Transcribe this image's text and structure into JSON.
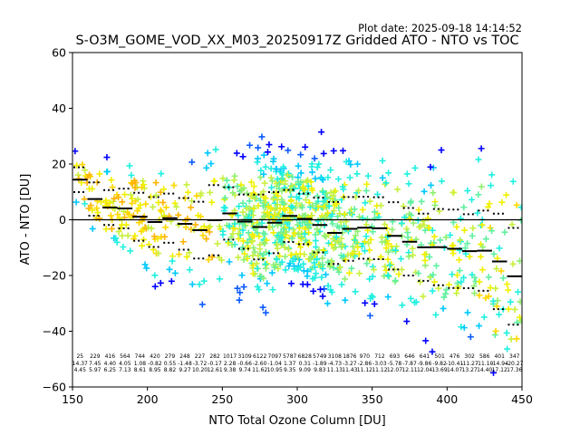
{
  "chart_data": {
    "type": "scatter",
    "plot_date": "Plot date: 2025-09-18 14:14:52",
    "title": "S-O3M_GOME_VOD_XX_M03_20250917Z Gridded ATO - NTO vs TOC",
    "xlabel": "NTO Total Ozone Column [DU]",
    "ylabel": "ATO - NTO [DU]",
    "xlim": [
      150,
      450
    ],
    "ylim": [
      -60,
      60
    ],
    "xticks": [
      "150",
      "200",
      "250",
      "300",
      "350",
      "400",
      "450"
    ],
    "yticks": [
      "60",
      "40",
      "20",
      "0",
      "−20",
      "−40",
      "−60"
    ],
    "zero_line": 0,
    "bin_width": 10,
    "bins": [
      {
        "x": 150,
        "count": "25",
        "median": 14.37,
        "std": 4.45
      },
      {
        "x": 160,
        "count": "229",
        "median": 7.45,
        "std": 5.97
      },
      {
        "x": 170,
        "count": "416",
        "median": 4.4,
        "std": 6.25
      },
      {
        "x": 180,
        "count": "564",
        "median": 4.05,
        "std": 7.13
      },
      {
        "x": 190,
        "count": "744",
        "median": 1.08,
        "std": 8.61
      },
      {
        "x": 200,
        "count": "420",
        "median": -0.82,
        "std": 8.95
      },
      {
        "x": 210,
        "count": "279",
        "median": 0.55,
        "std": 8.82
      },
      {
        "x": 220,
        "count": "248",
        "median": -1.48,
        "std": 9.27
      },
      {
        "x": 230,
        "count": "227",
        "median": -3.72,
        "std": 10.2
      },
      {
        "x": 240,
        "count": "282",
        "median": -0.17,
        "std": 12.61
      },
      {
        "x": 250,
        "count": "1017",
        "median": 2.28,
        "std": 9.38
      },
      {
        "x": 260,
        "count": "3109",
        "median": -0.66,
        "std": 9.74
      },
      {
        "x": 270,
        "count": "6122",
        "median": -2.6,
        "std": 11.62
      },
      {
        "x": 280,
        "count": "7097",
        "median": -1.04,
        "std": 10.95
      },
      {
        "x": 290,
        "count": "5787",
        "median": 1.37,
        "std": 9.35
      },
      {
        "x": 300,
        "count": "6828",
        "median": 0.31,
        "std": 9.09
      },
      {
        "x": 310,
        "count": "5749",
        "median": -1.89,
        "std": 9.83
      },
      {
        "x": 320,
        "count": "3108",
        "median": -4.73,
        "std": 11.13
      },
      {
        "x": 330,
        "count": "1876",
        "median": -3.27,
        "std": 11.43
      },
      {
        "x": 340,
        "count": "970",
        "median": -2.86,
        "std": 11.12
      },
      {
        "x": 350,
        "count": "712",
        "median": -3.03,
        "std": 11.12
      },
      {
        "x": 360,
        "count": "693",
        "median": -5.78,
        "std": 12.07
      },
      {
        "x": 370,
        "count": "646",
        "median": -7.87,
        "std": 12.11
      },
      {
        "x": 380,
        "count": "641",
        "median": -9.86,
        "std": 12.04
      },
      {
        "x": 390,
        "count": "501",
        "median": -9.82,
        "std": 13.69
      },
      {
        "x": 400,
        "count": "476",
        "median": -10.41,
        "std": 14.07
      },
      {
        "x": 410,
        "count": "302",
        "median": -11.27,
        "std": 13.27
      },
      {
        "x": 420,
        "count": "586",
        "median": -11.1,
        "std": 14.4
      },
      {
        "x": 430,
        "count": "401",
        "median": -14.94,
        "std": 17.12
      },
      {
        "x": 440,
        "count": "347",
        "median": -20.27,
        "std": 17.36
      }
    ],
    "colormap": [
      "#0000ff",
      "#0a5aff",
      "#00c8ff",
      "#20f0e0",
      "#60f0a0",
      "#90f070",
      "#c8f040",
      "#f0f000",
      "#ffd700",
      "#ffb400"
    ]
  }
}
